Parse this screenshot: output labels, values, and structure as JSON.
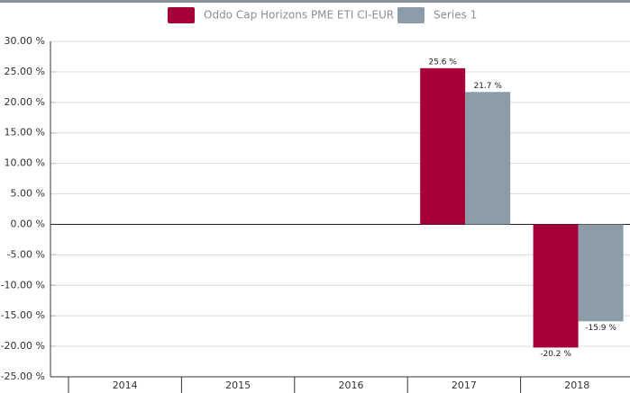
{
  "chart_data": {
    "type": "bar",
    "categories": [
      "2014",
      "2015",
      "2016",
      "2017",
      "2018"
    ],
    "series": [
      {
        "name": "Oddo Cap Horizons PME ETI CI-EUR",
        "color": "#a6003b",
        "values": [
          null,
          null,
          null,
          25.6,
          -20.2
        ],
        "value_labels": [
          null,
          null,
          null,
          "25.6 %",
          "-20.2 %"
        ]
      },
      {
        "name": "Series 1",
        "color": "#8c9ca8",
        "values": [
          null,
          null,
          null,
          21.7,
          -15.9
        ],
        "value_labels": [
          null,
          null,
          null,
          "21.7 %",
          "-15.9 %"
        ]
      }
    ],
    "ylim": [
      -25,
      30
    ],
    "yticks": [
      {
        "value": 30,
        "label": "30.00 %"
      },
      {
        "value": 25,
        "label": "25.00 %"
      },
      {
        "value": 20,
        "label": "20.00 %"
      },
      {
        "value": 15,
        "label": "15.00 %"
      },
      {
        "value": 10,
        "label": "10.00 %"
      },
      {
        "value": 5,
        "label": "5.00 %"
      },
      {
        "value": 0,
        "label": "0.00 %"
      },
      {
        "value": -5,
        "label": "-5.00 %"
      },
      {
        "value": -10,
        "label": "-10.00 %"
      },
      {
        "value": -15,
        "label": "-15.00 %"
      },
      {
        "value": -20,
        "label": "-20.00 %"
      },
      {
        "value": -25,
        "label": "-25.00 %"
      }
    ],
    "grid": true,
    "legend": "top"
  }
}
